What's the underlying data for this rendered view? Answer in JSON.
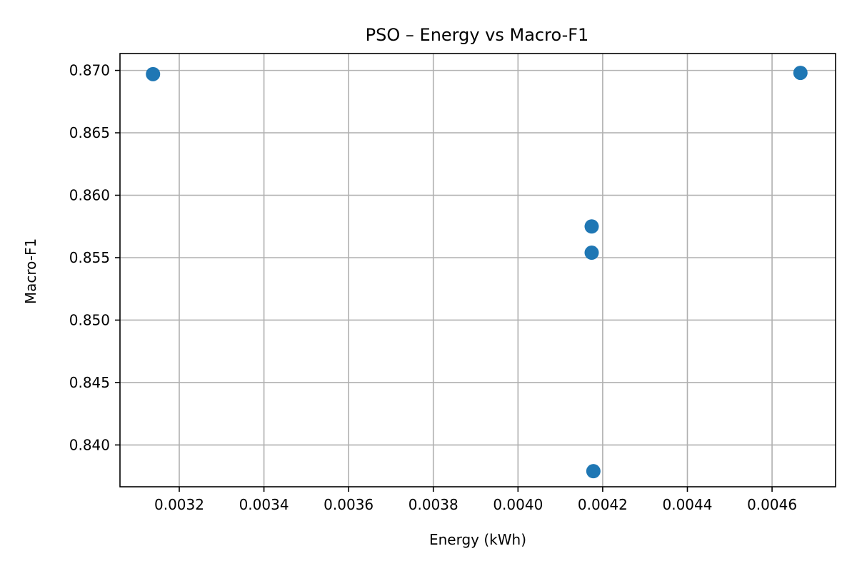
{
  "chart_data": {
    "type": "scatter",
    "title": "PSO – Energy vs Macro-F1",
    "xlabel": "Energy (kWh)",
    "ylabel": "Macro-F1",
    "xlim": [
      0.00306,
      0.00475
    ],
    "ylim": [
      0.83665,
      0.87135
    ],
    "grid": true,
    "marker_color": "#1f77b4",
    "x_ticks": [
      0.0032,
      0.0034,
      0.0036,
      0.0038,
      0.004,
      0.0042,
      0.0044,
      0.0046
    ],
    "x_tick_labels": [
      "0.0032",
      "0.0034",
      "0.0036",
      "0.0038",
      "0.0040",
      "0.0042",
      "0.0044",
      "0.0046"
    ],
    "y_ticks": [
      0.84,
      0.845,
      0.85,
      0.855,
      0.86,
      0.865,
      0.87
    ],
    "y_tick_labels": [
      "0.840",
      "0.845",
      "0.850",
      "0.855",
      "0.860",
      "0.865",
      "0.870"
    ],
    "points": [
      {
        "x": 0.003138,
        "y": 0.8697
      },
      {
        "x": 0.004174,
        "y": 0.8575
      },
      {
        "x": 0.004174,
        "y": 0.8554
      },
      {
        "x": 0.004178,
        "y": 0.8379
      },
      {
        "x": 0.004667,
        "y": 0.8698
      }
    ]
  }
}
